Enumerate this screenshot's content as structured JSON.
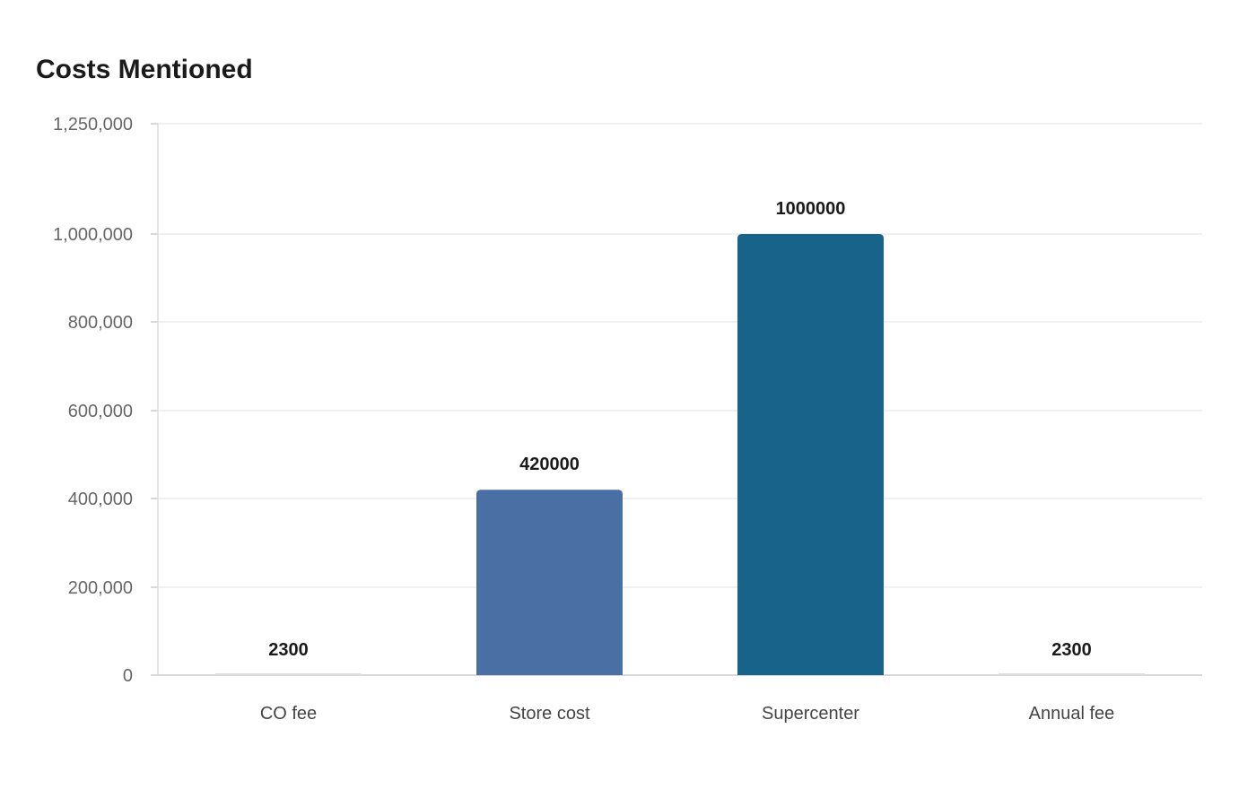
{
  "chart_data": {
    "type": "bar",
    "title": "Costs Mentioned",
    "xlabel": "",
    "ylabel": "",
    "categories": [
      "CO fee",
      "Store cost",
      "Supercenter",
      "Annual fee"
    ],
    "values": [
      2300,
      420000,
      1000000,
      2300
    ],
    "data_labels": [
      "2300",
      "420000",
      "1000000",
      "2300"
    ],
    "bar_colors": [
      "#cccccc",
      "#4a6fa5",
      "#176389",
      "#cccccc"
    ],
    "ylim": [
      0,
      1250000
    ],
    "yticks": [
      0,
      200000,
      400000,
      600000,
      800000,
      1000000,
      1250000
    ],
    "ytick_labels": [
      "0",
      "200,000",
      "400,000",
      "600,000",
      "800,000",
      "1,000,000",
      "1,250,000"
    ],
    "grid": true,
    "legend": "none"
  }
}
